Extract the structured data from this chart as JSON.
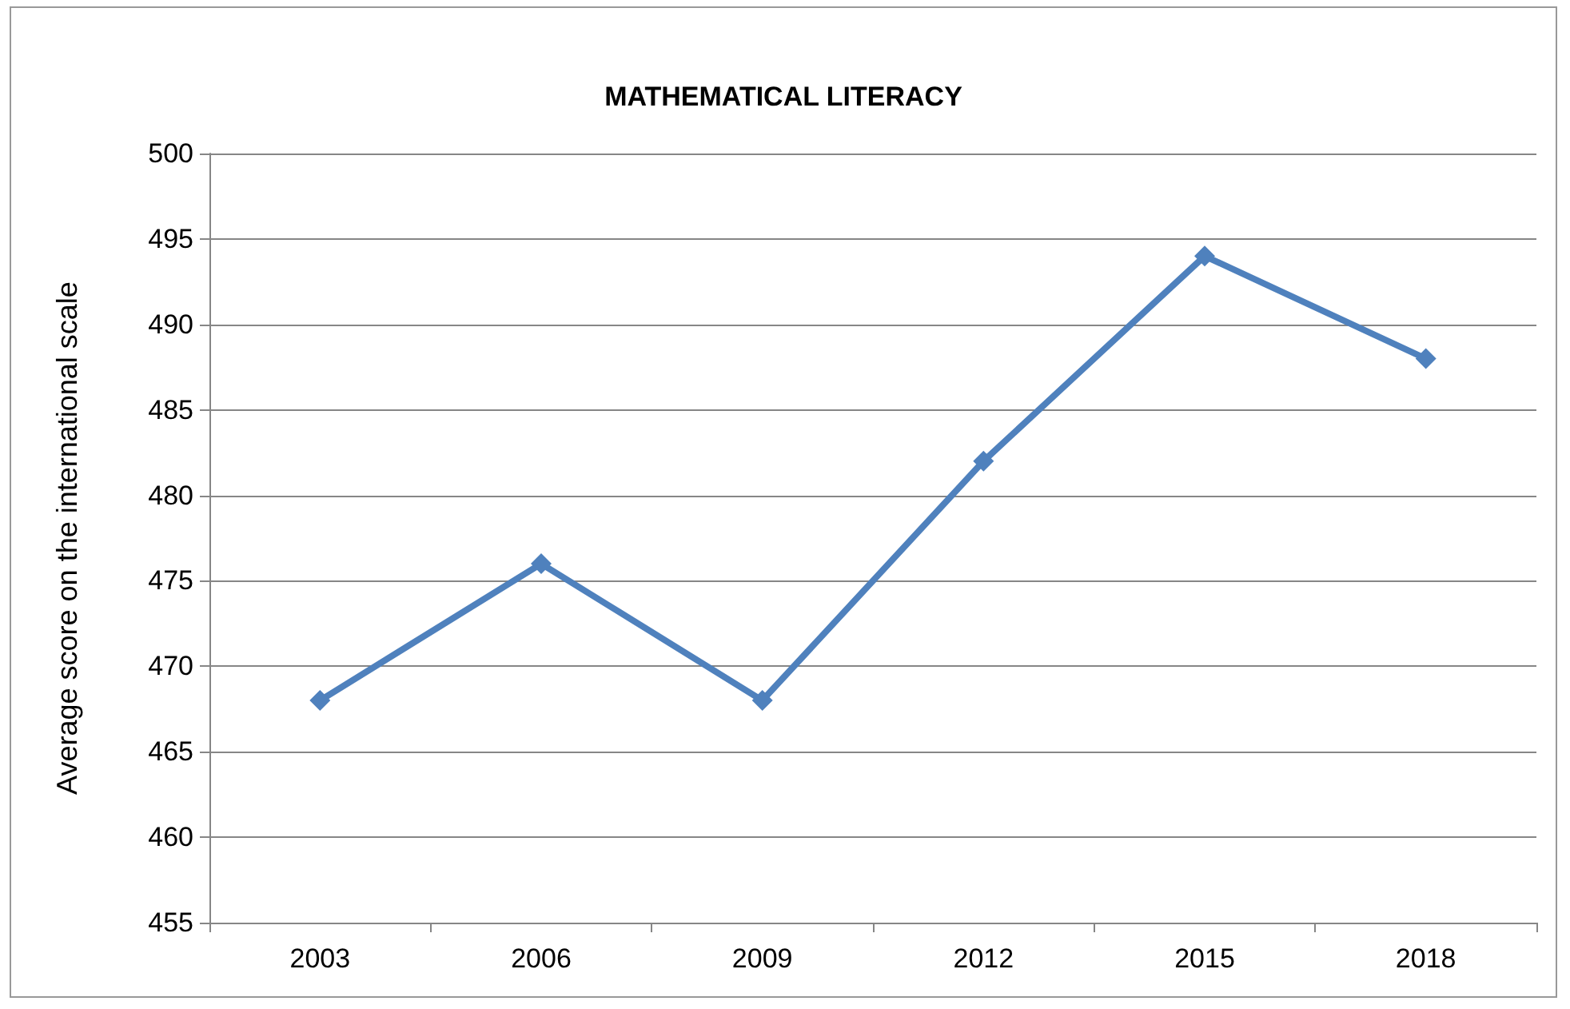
{
  "chart_data": {
    "type": "line",
    "title": "MATHEMATICAL LITERACY",
    "ylabel": "Average score on the international scale",
    "categories": [
      "2003",
      "2006",
      "2009",
      "2012",
      "2015",
      "2018"
    ],
    "series": [
      {
        "color": "#4f81bd",
        "values": [
          468,
          476,
          468,
          482,
          494,
          488
        ]
      }
    ],
    "ylim": [
      455,
      500
    ],
    "yticks": [
      455,
      460,
      465,
      470,
      475,
      480,
      485,
      490,
      495,
      500
    ],
    "grid": "y",
    "marker": "diamond",
    "line_style": "solid"
  }
}
